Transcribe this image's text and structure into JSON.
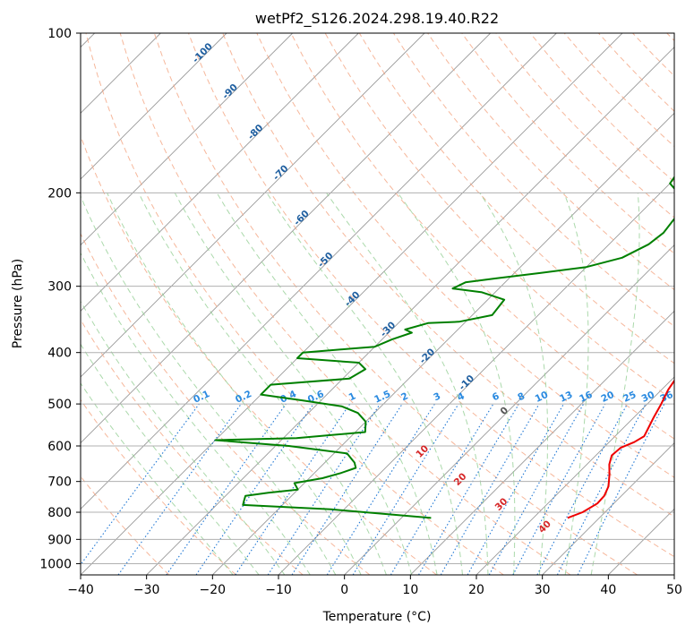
{
  "chart_data": {
    "type": "line",
    "title": "wetPf2_S126.2024.298.19.40.R22",
    "xlabel": "Temperature (°C)",
    "ylabel": "Pressure (hPa)",
    "xlim": [
      -40,
      50
    ],
    "ylim": [
      1050,
      100
    ],
    "y_scale": "log",
    "grid": true,
    "x_ticks": [
      "−40",
      "−30",
      "−20",
      "−10",
      "0",
      "10",
      "20",
      "30",
      "40",
      "50"
    ],
    "x_tick_values": [
      -40,
      -30,
      -20,
      -10,
      0,
      10,
      20,
      30,
      40,
      50
    ],
    "y_ticks": [
      "100",
      "200",
      "300",
      "400",
      "500",
      "600",
      "700",
      "800",
      "900",
      "1000"
    ],
    "y_tick_values": [
      100,
      200,
      300,
      400,
      500,
      600,
      700,
      800,
      900,
      1000
    ],
    "colors": {
      "temperature": "#ee0000",
      "dewpoint": "#008000",
      "isotherm": "#999999",
      "dry_adiabat": "#f4a582",
      "moist_adiabat": "#8fcc8f",
      "mixing_ratio": "#1f77d4",
      "dry_adiabat_label": "#d62728",
      "isotherm_label": "#1f5fa0",
      "mixing_label": "#2a8ae0"
    },
    "series": [
      {
        "key": "temperature",
        "points": [
          [
            25.2,
            820
          ],
          [
            26.6,
            800
          ],
          [
            27.5,
            770
          ],
          [
            27.4,
            745
          ],
          [
            26.6,
            715
          ],
          [
            25.0,
            680
          ],
          [
            23.4,
            650
          ],
          [
            22.4,
            625
          ],
          [
            22.6,
            605
          ],
          [
            23.8,
            590
          ],
          [
            24.4,
            575
          ],
          [
            23.8,
            555
          ],
          [
            23.0,
            530
          ],
          [
            22.1,
            500
          ],
          [
            21.0,
            470
          ],
          [
            20.4,
            445
          ],
          [
            19.6,
            420
          ],
          [
            18.2,
            400
          ],
          [
            16.5,
            380
          ],
          [
            14.4,
            355
          ],
          [
            11.8,
            320
          ],
          [
            8.5,
            285
          ],
          [
            5.7,
            255
          ],
          [
            3.0,
            225
          ],
          [
            1.0,
            210
          ],
          [
            0.4,
            200
          ],
          [
            0.9,
            192
          ],
          [
            3.0,
            188
          ],
          [
            5.3,
            183
          ],
          [
            5.8,
            176
          ],
          [
            5.5,
            168
          ],
          [
            4.9,
            160
          ],
          [
            3.5,
            140
          ],
          [
            2.2,
            120
          ],
          [
            0.6,
            105
          ],
          [
            0.0,
            100
          ]
        ]
      },
      {
        "key": "dewpoint",
        "points": [
          [
            4.5,
            820
          ],
          [
            -12.0,
            790
          ],
          [
            -26.0,
            775
          ],
          [
            -26.5,
            760
          ],
          [
            -27.0,
            745
          ],
          [
            -24.0,
            735
          ],
          [
            -20.0,
            725
          ],
          [
            -21.5,
            705
          ],
          [
            -18.0,
            690
          ],
          [
            -16.0,
            675
          ],
          [
            -14.5,
            660
          ],
          [
            -15.5,
            645
          ],
          [
            -18.0,
            620
          ],
          [
            -28.0,
            600
          ],
          [
            -40.0,
            585
          ],
          [
            -28.0,
            580
          ],
          [
            -18.5,
            565
          ],
          [
            -20.0,
            540
          ],
          [
            -22.5,
            520
          ],
          [
            -26.0,
            505
          ],
          [
            -33.0,
            492
          ],
          [
            -40.0,
            480
          ],
          [
            -40.0,
            460
          ],
          [
            -29.0,
            448
          ],
          [
            -28.0,
            430
          ],
          [
            -30.0,
            418
          ],
          [
            -40.0,
            410
          ],
          [
            -40.0,
            400
          ],
          [
            -33.0,
            393
          ],
          [
            -30.0,
            390
          ],
          [
            -28.5,
            378
          ],
          [
            -26.5,
            367
          ],
          [
            -28.0,
            362
          ],
          [
            -25.5,
            352
          ],
          [
            -21.0,
            350
          ],
          [
            -17.0,
            340
          ],
          [
            -17.5,
            318
          ],
          [
            -22.0,
            308
          ],
          [
            -27.0,
            303
          ],
          [
            -26.0,
            295
          ],
          [
            -22.0,
            290
          ],
          [
            -16.0,
            283
          ],
          [
            -10.0,
            276
          ],
          [
            -6.0,
            265
          ],
          [
            -4.0,
            250
          ],
          [
            -3.5,
            238
          ],
          [
            -4.0,
            223
          ],
          [
            -4.0,
            212
          ],
          [
            -5.5,
            205
          ],
          [
            -8.0,
            198
          ],
          [
            -10.0,
            192
          ],
          [
            -10.5,
            183
          ],
          [
            -9.0,
            176
          ],
          [
            -7.5,
            165
          ],
          [
            -6.0,
            153
          ],
          [
            -4.5,
            142
          ],
          [
            -4.0,
            130
          ],
          [
            -4.0,
            118
          ],
          [
            -2.5,
            112
          ],
          [
            -0.5,
            105
          ],
          [
            0.0,
            100
          ]
        ]
      }
    ],
    "isotherm_labels": [
      "-100",
      "-90",
      "-80",
      "-70",
      "-60",
      "-50",
      "-40",
      "-30",
      "-20",
      "-10",
      "0",
      "10",
      "20",
      "30",
      "40"
    ],
    "mixing_ratio_labels": [
      "0.1",
      "0.2",
      "0.4",
      "0.6",
      "1",
      "1.5",
      "2",
      "3",
      "4",
      "6",
      "8",
      "10",
      "13",
      "16",
      "20",
      "25",
      "30",
      "36"
    ]
  }
}
